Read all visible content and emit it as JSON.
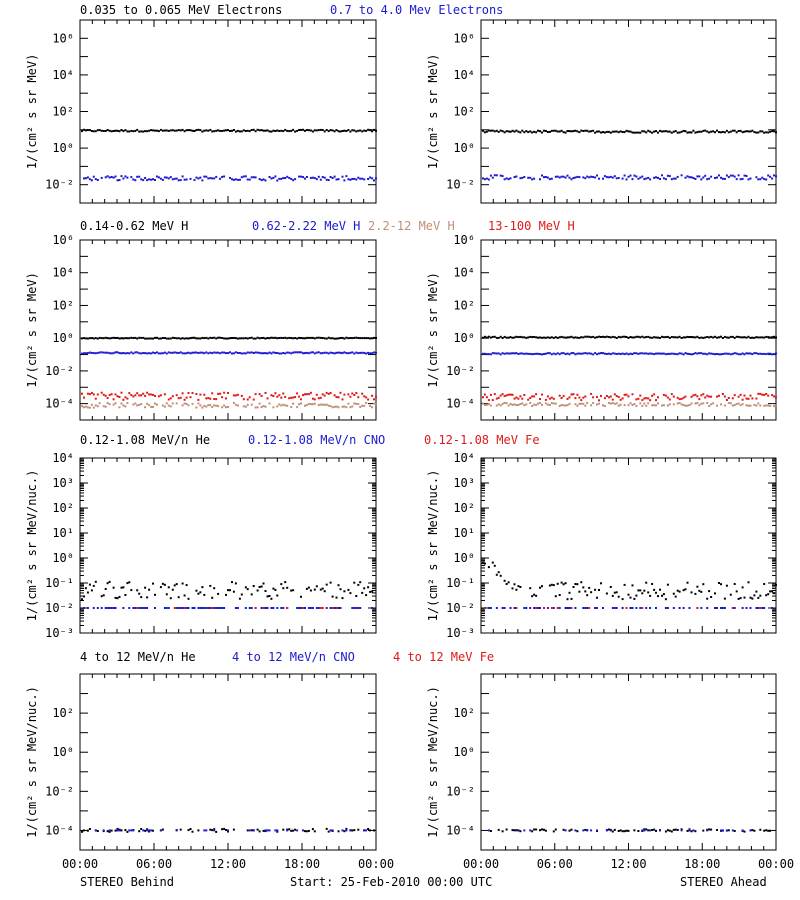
{
  "colors": {
    "black": "#000000",
    "blue": "#1a1ad0",
    "tan": "#c08f78",
    "red": "#e01818",
    "axis": "#000000"
  },
  "time_axis": {
    "ticks": [
      "00:00",
      "06:00",
      "12:00",
      "18:00",
      "00:00"
    ]
  },
  "footer": {
    "left": "STEREO Behind",
    "center": "Start: 25-Feb-2010 00:00 UTC",
    "right": "STEREO Ahead"
  },
  "chart_data": [
    {
      "type": "scatter",
      "row": "electrons",
      "legend": [
        {
          "name": "0.035 to 0.065 MeV Electrons",
          "color": "black"
        },
        {
          "name": "0.7 to 4.0 Mev Electrons",
          "color": "blue"
        }
      ],
      "ylabel": "1/(cm² s sr MeV)",
      "yscale": "log",
      "ylim_exp": [
        -3,
        7
      ],
      "ytick_exps": [
        -2,
        0,
        2,
        4,
        6
      ],
      "ytick_labels": [
        "10⁻²",
        "10⁰",
        "10²",
        "10⁴",
        "10⁶"
      ],
      "x_hours": [
        0,
        24
      ],
      "panels": [
        {
          "side": "STEREO Behind",
          "series": [
            {
              "name": "0.035 to 0.065 MeV Electrons",
              "color": "black",
              "level_exp": 0.95,
              "spread": 0.05,
              "sparse": 1
            },
            {
              "name": "0.7 to 4.0 Mev Electrons",
              "color": "blue",
              "level_exp": -1.65,
              "spread": 0.12,
              "sparse": 0.9
            }
          ]
        },
        {
          "side": "STEREO Ahead",
          "series": [
            {
              "name": "0.035 to 0.065 MeV Electrons",
              "color": "black",
              "level_exp": 0.9,
              "spread": 0.06,
              "sparse": 1
            },
            {
              "name": "0.7 to 4.0 Mev Electrons",
              "color": "blue",
              "level_exp": -1.6,
              "spread": 0.12,
              "sparse": 0.9
            }
          ]
        }
      ]
    },
    {
      "type": "scatter",
      "row": "protons",
      "legend": [
        {
          "name": "0.14-0.62 MeV H",
          "color": "black"
        },
        {
          "name": "0.62-2.22 MeV H",
          "color": "blue"
        },
        {
          "name": "2.2-12 MeV H",
          "color": "tan"
        },
        {
          "name": "13-100 MeV H",
          "color": "red"
        }
      ],
      "ylabel": "1/(cm² s sr MeV)",
      "yscale": "log",
      "ylim_exp": [
        -5,
        6
      ],
      "ytick_exps": [
        -4,
        -2,
        0,
        2,
        4,
        6
      ],
      "ytick_labels": [
        "10⁻⁴",
        "10⁻²",
        "10⁰",
        "10²",
        "10⁴",
        "10⁶"
      ],
      "x_hours": [
        0,
        24
      ],
      "panels": [
        {
          "side": "STEREO Behind",
          "series": [
            {
              "name": "0.14-0.62 MeV H",
              "color": "black",
              "level_exp": 0.0,
              "spread": 0.03,
              "sparse": 1
            },
            {
              "name": "0.62-2.22 MeV H",
              "color": "blue",
              "level_exp": -0.9,
              "spread": 0.04,
              "sparse": 1
            },
            {
              "name": "2.2-12 MeV H",
              "color": "tan",
              "level_exp": -4.1,
              "spread": 0.15,
              "sparse": 0.8
            },
            {
              "name": "13-100 MeV H",
              "color": "red",
              "level_exp": -3.55,
              "spread": 0.22,
              "sparse": 0.85
            }
          ]
        },
        {
          "side": "STEREO Ahead",
          "series": [
            {
              "name": "0.14-0.62 MeV H",
              "color": "black",
              "level_exp": 0.05,
              "spread": 0.04,
              "sparse": 1
            },
            {
              "name": "0.62-2.22 MeV H",
              "color": "blue",
              "level_exp": -0.95,
              "spread": 0.04,
              "sparse": 1
            },
            {
              "name": "2.2-12 MeV H",
              "color": "tan",
              "level_exp": -4.05,
              "spread": 0.1,
              "sparse": 0.8
            },
            {
              "name": "13-100 MeV H",
              "color": "red",
              "level_exp": -3.6,
              "spread": 0.2,
              "sparse": 0.85
            }
          ]
        }
      ]
    },
    {
      "type": "scatter",
      "row": "suprathermal",
      "legend": [
        {
          "name": "0.12-1.08 MeV/n He",
          "color": "black"
        },
        {
          "name": "0.12-1.08 MeV/n CNO",
          "color": "blue"
        },
        {
          "name": "0.12-1.08 MeV Fe",
          "color": "red"
        }
      ],
      "ylabel": "1/(cm² s sr MeV/nuc.)",
      "yscale": "log",
      "ylim_exp": [
        -3,
        4
      ],
      "ytick_exps": [
        -3,
        -2,
        -1,
        0,
        1,
        2,
        3,
        4
      ],
      "ytick_labels": [
        "10⁻³",
        "10⁻²",
        "10⁻¹",
        "10⁰",
        "10¹",
        "10²",
        "10³",
        "10⁴"
      ],
      "x_hours": [
        0,
        24
      ],
      "panels": [
        {
          "side": "STEREO Behind",
          "series": [
            {
              "name": "0.12-1.08 MeV/n He",
              "color": "black",
              "level_exp": -1.3,
              "spread": 0.35,
              "sparse": 0.75
            },
            {
              "name": "0.12-1.08 MeV/n CNO",
              "color": "blue",
              "level_exp": -2.0,
              "spread": 0.0,
              "sparse": 0.55
            },
            {
              "name": "0.12-1.08 MeV Fe",
              "color": "red",
              "level_exp": -2.0,
              "spread": 0.0,
              "sparse": 0.05
            }
          ]
        },
        {
          "side": "STEREO Ahead",
          "series": [
            {
              "name": "0.12-1.08 MeV/n He",
              "color": "black",
              "level_exp": -1.3,
              "spread": 0.35,
              "sparse": 0.75,
              "early_enhancement_exp": 0.0
            },
            {
              "name": "0.12-1.08 MeV/n CNO",
              "color": "blue",
              "level_exp": -2.0,
              "spread": 0.0,
              "sparse": 0.45
            },
            {
              "name": "0.12-1.08 MeV Fe",
              "color": "red",
              "level_exp": -2.0,
              "spread": 0.0,
              "sparse": 0.06
            }
          ]
        }
      ]
    },
    {
      "type": "scatter",
      "row": "energetic",
      "legend": [
        {
          "name": "4 to 12 MeV/n He",
          "color": "black"
        },
        {
          "name": "4 to 12 MeV/n CNO",
          "color": "blue"
        },
        {
          "name": "4 to 12 MeV Fe",
          "color": "red"
        }
      ],
      "ylabel": "1/(cm² s sr MeV/nuc.)",
      "yscale": "log",
      "ylim_exp": [
        -5,
        4
      ],
      "ytick_exps": [
        -4,
        -2,
        0,
        2
      ],
      "ytick_labels": [
        "10⁻⁴",
        "10⁻²",
        "10⁰",
        "10²"
      ],
      "x_hours": [
        0,
        24
      ],
      "panels": [
        {
          "side": "STEREO Behind",
          "series": [
            {
              "name": "4 to 12 MeV/n He",
              "color": "black",
              "level_exp": -4.0,
              "spread": 0.08,
              "sparse": 0.5
            },
            {
              "name": "4 to 12 MeV/n CNO",
              "color": "blue",
              "level_exp": -4.0,
              "spread": 0.0,
              "sparse": 0.2
            }
          ]
        },
        {
          "side": "STEREO Ahead",
          "series": [
            {
              "name": "4 to 12 MeV/n He",
              "color": "black",
              "level_exp": -4.0,
              "spread": 0.06,
              "sparse": 0.55
            },
            {
              "name": "4 to 12 MeV/n CNO",
              "color": "blue",
              "level_exp": -4.0,
              "spread": 0.0,
              "sparse": 0.1
            }
          ]
        }
      ]
    }
  ]
}
